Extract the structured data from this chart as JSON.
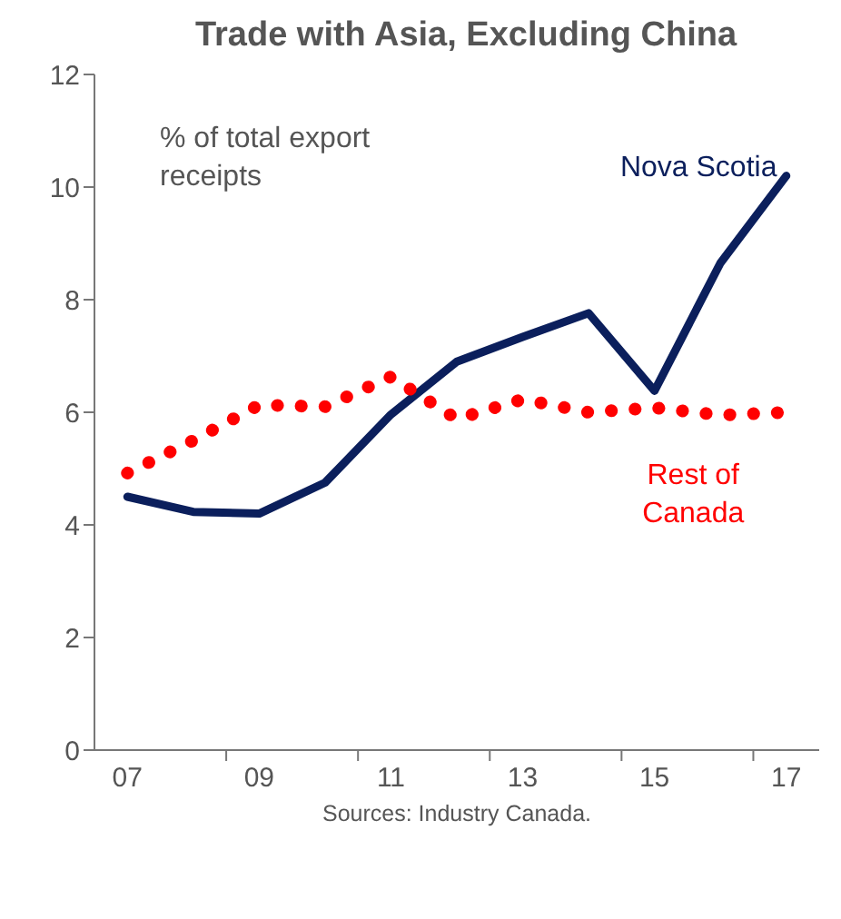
{
  "chart_data": {
    "type": "line",
    "title": "Trade with Asia, Excluding China",
    "ylabel": "% of total export receipts",
    "x": [
      2007,
      2008,
      2009,
      2010,
      2011,
      2012,
      2013,
      2014,
      2015,
      2016,
      2017
    ],
    "series": [
      {
        "name": "Nova Scotia",
        "color": "#0b1f5c",
        "line_style": "solid",
        "values": [
          4.5,
          4.23,
          4.2,
          4.75,
          5.96,
          6.9,
          7.34,
          7.76,
          6.38,
          8.65,
          10.2
        ]
      },
      {
        "name": "Rest of Canada",
        "color": "#ff0000",
        "line_style": "dotted",
        "values": [
          4.92,
          5.5,
          6.13,
          6.1,
          6.63,
          5.88,
          6.23,
          6.0,
          6.08,
          5.95,
          6.0
        ]
      }
    ],
    "xlim": [
      2006.5,
      2017.5
    ],
    "xticks": [
      {
        "value": 2007,
        "label": "07"
      },
      {
        "value": 2008.5,
        "label": null
      },
      {
        "value": 2009,
        "label": "09"
      },
      {
        "value": 2010.5,
        "label": null
      },
      {
        "value": 2011,
        "label": "11"
      },
      {
        "value": 2012.5,
        "label": null
      },
      {
        "value": 2013,
        "label": "13"
      },
      {
        "value": 2014.5,
        "label": null
      },
      {
        "value": 2015,
        "label": "15"
      },
      {
        "value": 2016.5,
        "label": null
      },
      {
        "value": 2017,
        "label": "17"
      }
    ],
    "ylim": [
      0,
      12
    ],
    "yticks": [
      0,
      2,
      4,
      6,
      8,
      10,
      12
    ],
    "grid": false,
    "legend": false,
    "marker": "none",
    "annotations": [
      "Sources: Industry Canada."
    ]
  }
}
